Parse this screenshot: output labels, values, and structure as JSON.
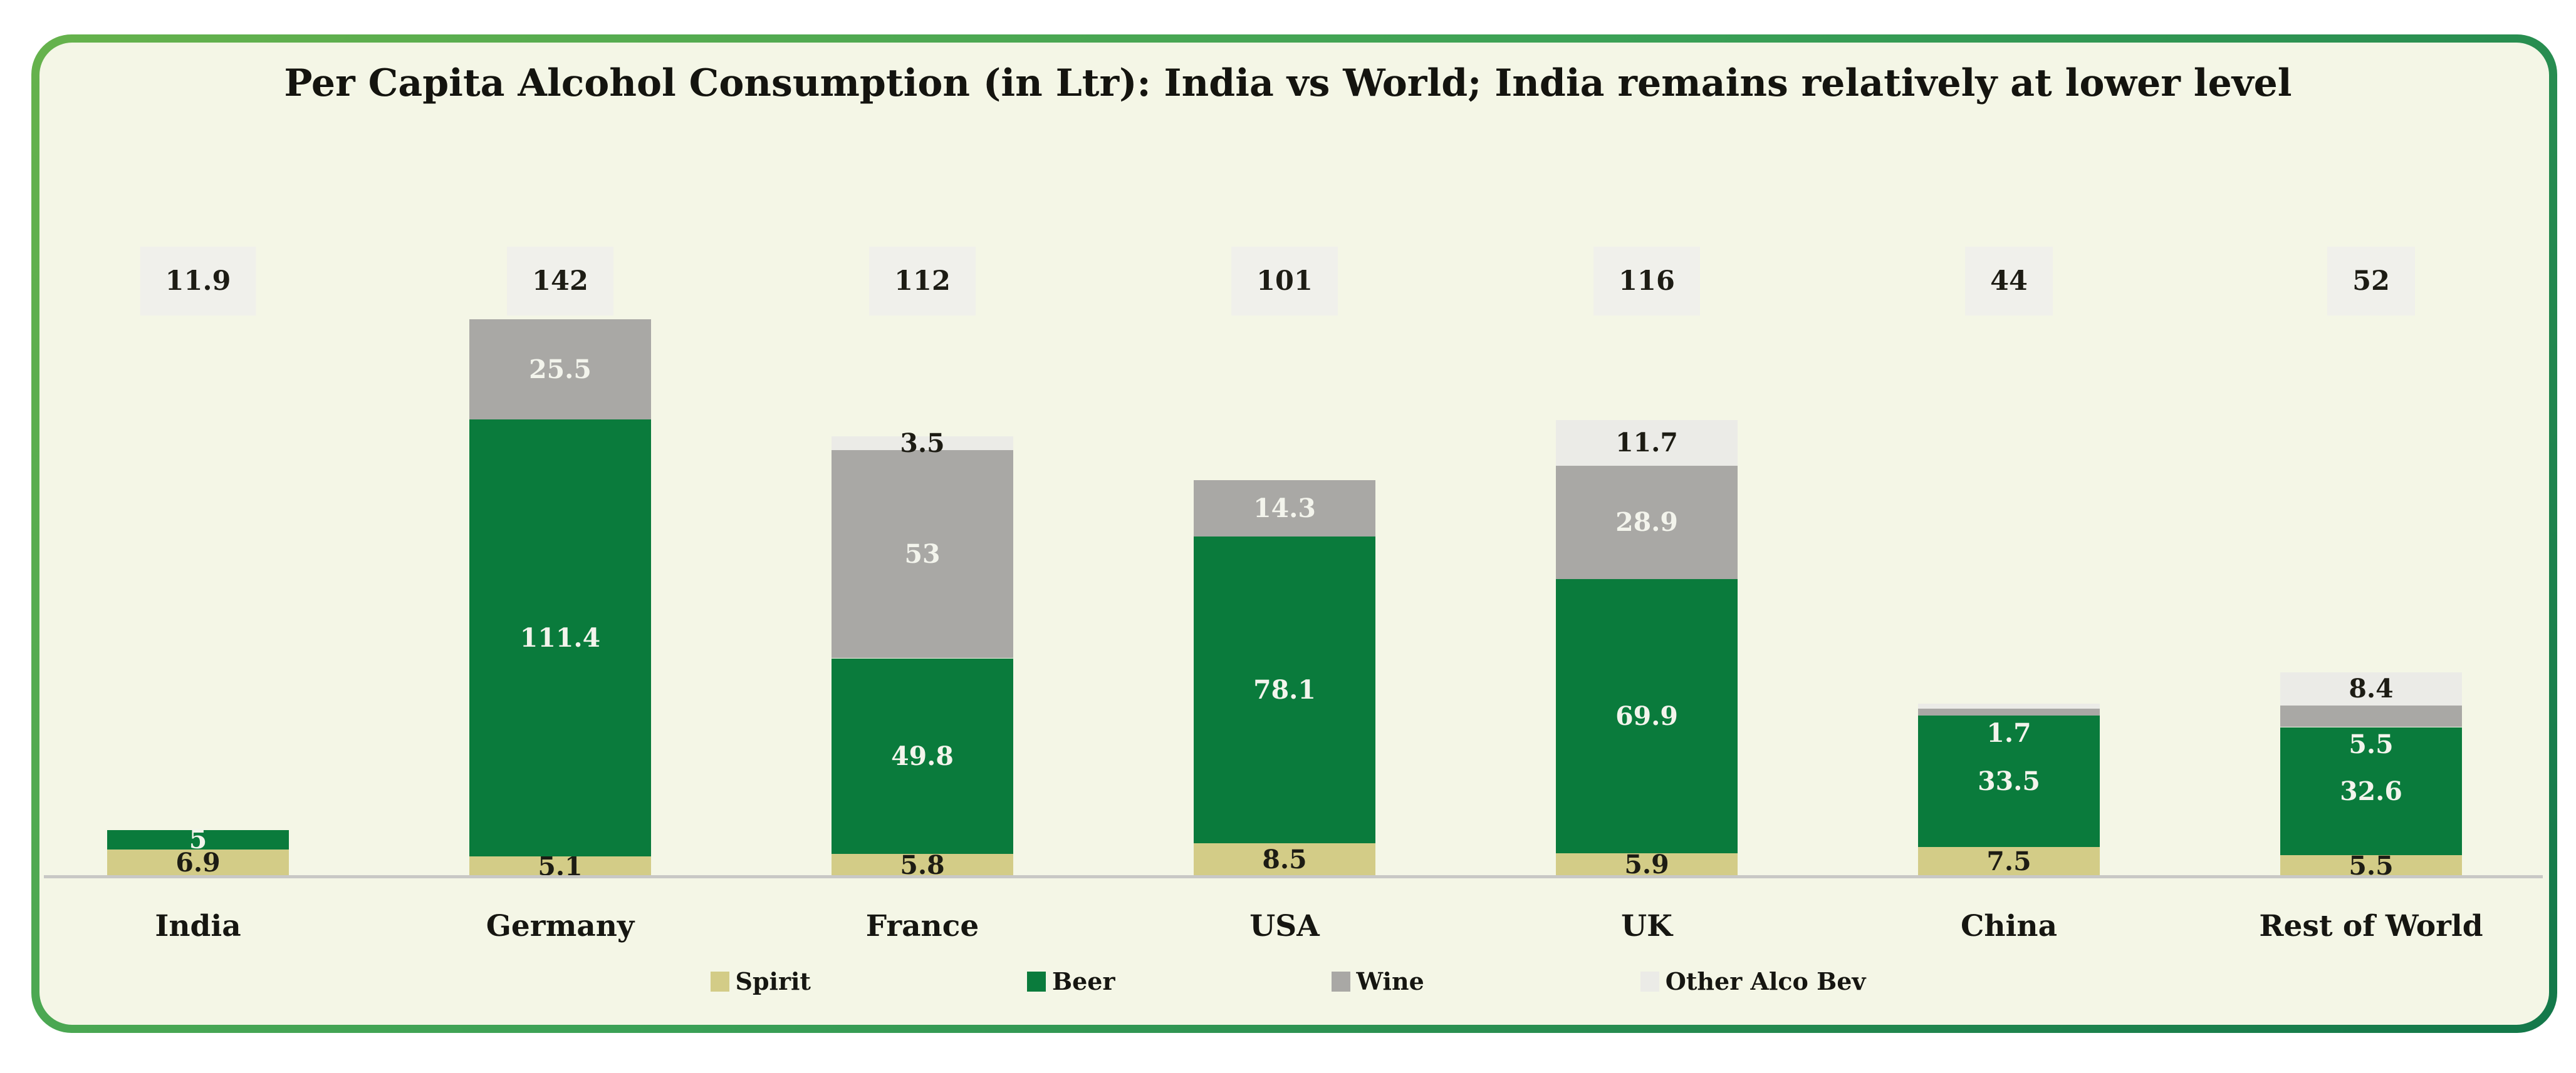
{
  "title": "Per Capita Alcohol Consumption (in Ltr): India vs World; India remains relatively at lower level",
  "chart_data": {
    "type": "bar",
    "stacked": true,
    "title": "Per Capita Alcohol Consumption (in Ltr): India vs World; India remains relatively at lower level",
    "categories": [
      "India",
      "Germany",
      "France",
      "USA",
      "UK",
      "China",
      "Rest of World"
    ],
    "totals": [
      "11.9",
      "142",
      "112",
      "101",
      "116",
      "44",
      "52"
    ],
    "series": [
      {
        "name": "Spirit",
        "color": "#d3cc87",
        "label_color": "#1d1c14",
        "values": [
          6.9,
          5.1,
          5.8,
          8.5,
          5.9,
          7.5,
          5.5
        ],
        "labels": [
          "6.9",
          "5.1",
          "5.8",
          "8.5",
          "5.9",
          "7.5",
          "5.5"
        ],
        "label_pos": [
          "center",
          "center",
          "center",
          "center",
          "center",
          "center",
          "center"
        ]
      },
      {
        "name": "Beer",
        "color": "#0a7b3c",
        "label_color": "#f3f4ec",
        "values": [
          5,
          111.4,
          49.8,
          78.1,
          69.9,
          33.5,
          32.6
        ],
        "labels": [
          "5",
          "111.4",
          "49.8",
          "78.1",
          "69.9",
          "33.5",
          "32.6"
        ],
        "label_pos": [
          "center",
          "center",
          "center",
          "center",
          "center",
          "center",
          "center"
        ]
      },
      {
        "name": "Wine",
        "color": "#a9a8a5",
        "label_color": "#f3f4ec",
        "values": [
          null,
          25.5,
          53,
          14.3,
          28.9,
          1.7,
          5.5
        ],
        "labels": [
          null,
          "25.5",
          "53",
          "14.3",
          "28.9",
          "1.7",
          "5.5"
        ],
        "label_pos": [
          "center",
          "center",
          "center",
          "center",
          "center",
          "below",
          "below"
        ]
      },
      {
        "name": "Other Alco Bev",
        "color": "#ebebe7",
        "label_color": "#1d1c14",
        "values": [
          null,
          null,
          3.5,
          null,
          11.7,
          1.3,
          8.4
        ],
        "labels": [
          null,
          null,
          "3.5",
          null,
          "11.7",
          null,
          "8.4"
        ],
        "label_pos": [
          "center",
          "center",
          "center",
          "center",
          "center",
          "center",
          "center"
        ]
      }
    ],
    "ylim": [
      0,
      161
    ],
    "grid": false,
    "legend_position": "bottom",
    "legend_labels": [
      "Spirit",
      "Beer",
      "Wine",
      "Other Alco Bev"
    ]
  },
  "colors": {
    "card_background": "#f4f6e6",
    "page_background": "#ffffff",
    "border_gradient_start": "#66b24c",
    "border_gradient_end": "#13784a",
    "total_badge_background": "#f0f0eb",
    "axis_line": "#c8c8c5",
    "dark_text": "#1d1c14",
    "light_text": "#f3f4ec"
  }
}
